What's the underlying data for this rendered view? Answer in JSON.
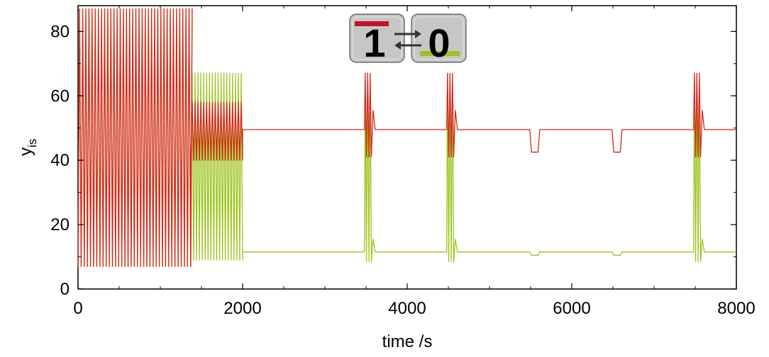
{
  "chart_data": {
    "type": "line",
    "title": "",
    "xlabel": "time /s",
    "ylabel": "y",
    "ylabel_subscript": "is",
    "xlim": [
      0,
      8000
    ],
    "ylim": [
      0,
      88
    ],
    "xticks": [
      0,
      2000,
      4000,
      6000,
      8000
    ],
    "yticks": [
      0,
      20,
      40,
      60,
      80
    ],
    "grid": false,
    "legend": {
      "placement": "top-center",
      "states": [
        {
          "label": "1",
          "color": "#c8102e"
        },
        {
          "label": "0",
          "color": "#9bc31c"
        }
      ],
      "arrows": "⇄"
    },
    "series": [
      {
        "color": "#d7261e",
        "phases": [
          {
            "x": [
              0,
              1370
            ],
            "type": "oscillation",
            "period": 38,
            "min": 7,
            "max": 87
          },
          {
            "x": [
              1370,
              2000
            ],
            "type": "oscillation",
            "period": 35,
            "min": 40,
            "max": 58
          },
          {
            "x": [
              2000,
              8000
            ],
            "type": "steady",
            "value": 49.5
          }
        ],
        "bursts": [
          {
            "x": 3500,
            "min": 41,
            "max": 67
          },
          {
            "x": 4500,
            "min": 41,
            "max": 67
          },
          {
            "x": 7500,
            "min": 41,
            "max": 67
          }
        ],
        "dips": [
          {
            "x": [
              5500,
              5600
            ],
            "value": 42.5
          },
          {
            "x": [
              6500,
              6600
            ],
            "value": 42.5
          }
        ]
      },
      {
        "color": "#9bc31c",
        "phases": [
          {
            "x": [
              0,
              1370
            ],
            "type": "oscillation",
            "period": 38,
            "min": 7,
            "max": 87
          },
          {
            "x": [
              1370,
              2000
            ],
            "type": "oscillation",
            "period": 35,
            "min": 9,
            "max": 67
          },
          {
            "x": [
              2000,
              8000
            ],
            "type": "steady",
            "value": 11.5
          }
        ],
        "bursts": [
          {
            "x": 3500,
            "min": 8.5,
            "max": 67
          },
          {
            "x": 4500,
            "min": 8.5,
            "max": 67
          },
          {
            "x": 7500,
            "min": 8.5,
            "max": 67
          }
        ],
        "dips": [
          {
            "x": [
              5500,
              5600
            ],
            "value": 10.5
          },
          {
            "x": [
              6500,
              6600
            ],
            "value": 10.5
          }
        ]
      }
    ]
  }
}
